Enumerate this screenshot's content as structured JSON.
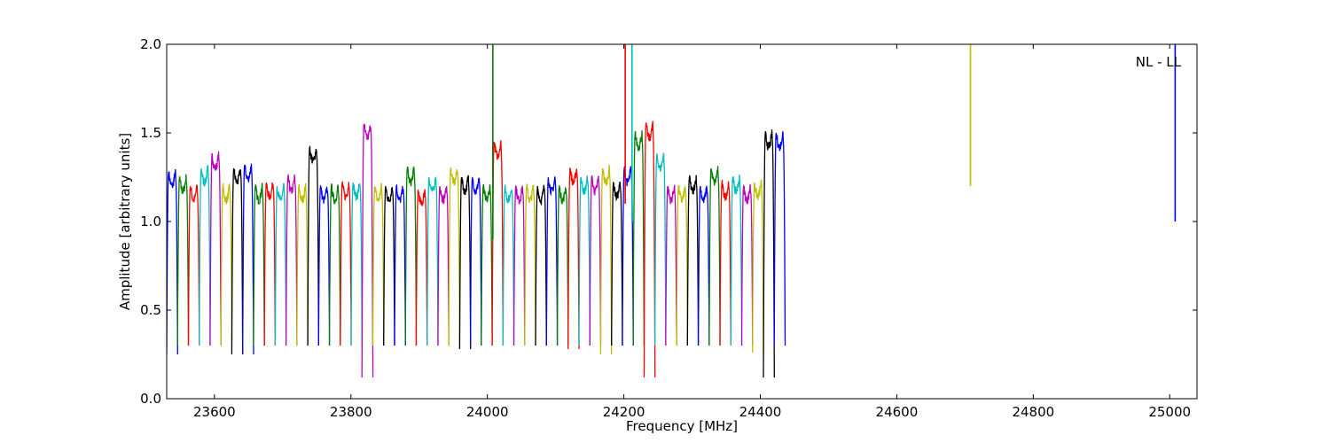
{
  "chart_data": {
    "type": "line",
    "title": "",
    "xlabel": "Frequency [MHz]",
    "ylabel": "Amplitude [arbitrary units]",
    "annotation": "NL - LL",
    "xlim": [
      23530,
      25040
    ],
    "ylim": [
      0.0,
      2.0
    ],
    "xticks": [
      23600,
      23800,
      24000,
      24200,
      24400,
      24600,
      24800,
      25000
    ],
    "yticks": [
      0.0,
      0.5,
      1.0,
      1.5,
      2.0
    ],
    "xtick_labels": [
      "23600",
      "23800",
      "24000",
      "24200",
      "24400",
      "24600",
      "24800",
      "25000"
    ],
    "ytick_labels": [
      "0.0",
      "0.5",
      "1.0",
      "1.5",
      "2.0"
    ],
    "grid": false,
    "palette": [
      "#0000ff",
      "#007f00",
      "#ff0000",
      "#00bfbf",
      "#bf00bf",
      "#bfbf00",
      "#000000"
    ],
    "channel_width_mhz": 16,
    "channel_start_mhz": 23530,
    "channel_step_mhz": 15.9,
    "peak_levels": [
      1.28,
      1.25,
      1.2,
      1.3,
      1.38,
      1.2,
      1.3,
      1.32,
      1.2,
      1.22,
      1.2,
      1.25,
      1.2,
      1.42,
      1.2,
      1.2,
      1.22,
      1.22,
      1.55,
      1.2,
      1.2,
      1.2,
      1.3,
      1.18,
      1.25,
      1.2,
      1.3,
      1.25,
      1.25,
      1.2,
      1.45,
      1.2,
      1.2,
      1.2,
      1.2,
      1.25,
      1.2,
      1.3,
      1.25,
      1.25,
      1.3,
      1.22,
      1.3,
      1.5,
      1.55,
      1.38,
      1.2,
      1.2,
      1.25,
      1.2,
      1.3,
      1.22,
      1.25,
      1.2,
      1.22,
      1.5,
      1.5
    ],
    "trough_levels": [
      0.25,
      0.3,
      0.3,
      0.3,
      0.3,
      0.3,
      0.25,
      0.25,
      0.3,
      0.3,
      0.3,
      0.3,
      0.3,
      0.3,
      0.3,
      0.3,
      0.3,
      0.3,
      0.12,
      0.3,
      0.3,
      0.3,
      0.3,
      0.3,
      0.3,
      0.3,
      0.3,
      0.28,
      0.3,
      0.3,
      0.3,
      0.3,
      0.3,
      0.3,
      0.3,
      0.3,
      0.3,
      0.28,
      0.3,
      0.3,
      0.25,
      0.3,
      0.3,
      0.3,
      0.12,
      0.3,
      0.3,
      0.3,
      0.3,
      0.3,
      0.3,
      0.3,
      0.3,
      0.3,
      0.26,
      0.12,
      0.3
    ],
    "spikes": [
      {
        "x": 24008,
        "top": 2.0,
        "bottom": 0.9,
        "color": "#007f00"
      },
      {
        "x": 24202,
        "top": 2.0,
        "bottom": 1.1,
        "color": "#ff0000"
      },
      {
        "x": 24212,
        "top": 2.0,
        "bottom": 1.0,
        "color": "#00bfbf"
      },
      {
        "x": 24708,
        "top": 2.0,
        "bottom": 1.2,
        "color": "#bfbf00"
      },
      {
        "x": 25008,
        "top": 2.0,
        "bottom": 1.0,
        "color": "#0000ff"
      }
    ]
  }
}
